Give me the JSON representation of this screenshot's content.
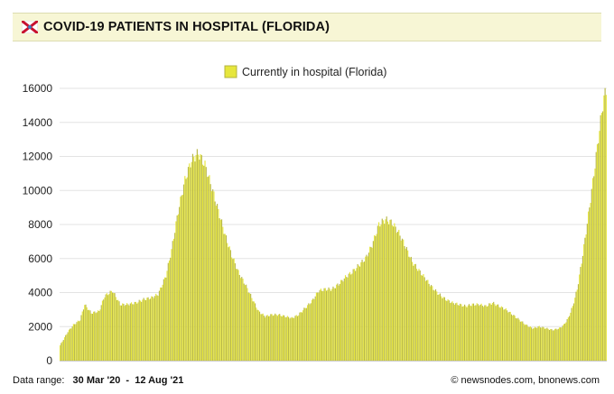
{
  "header": {
    "title": "COVID-19 PATIENTS IN HOSPITAL (FLORIDA)",
    "flag_icon": "florida-flag-icon",
    "accent_color": "#f7f6d5"
  },
  "footer": {
    "range_label": "Data range:",
    "range_value": "30 Mar '20  -  12 Aug '21",
    "credit": "© newsnodes.com, bnonews.com"
  },
  "chart_data": {
    "type": "bar",
    "title": "",
    "legend": [
      {
        "name": "Currently in hospital (Florida)",
        "color": "#e6e63c"
      }
    ],
    "legend_position": "top-center",
    "xlabel": "",
    "ylabel": "",
    "ylim": [
      0,
      16000
    ],
    "yticks": [
      "0",
      "2000",
      "4000",
      "6000",
      "8000",
      "10000",
      "12000",
      "14000",
      "16000"
    ],
    "grid": true,
    "x_start": "30 Mar '20",
    "x_end": "12 Aug '21",
    "series_color": "#e6e63c",
    "series_edge_color": "#b8b84a",
    "series_name": "Currently in hospital (Florida)",
    "keypoints_day_value": [
      [
        0,
        900
      ],
      [
        7,
        1700
      ],
      [
        12,
        2100
      ],
      [
        18,
        2400
      ],
      [
        22,
        3300
      ],
      [
        28,
        2800
      ],
      [
        35,
        2900
      ],
      [
        40,
        3800
      ],
      [
        47,
        4100
      ],
      [
        54,
        3300
      ],
      [
        60,
        3300
      ],
      [
        68,
        3400
      ],
      [
        75,
        3600
      ],
      [
        82,
        3700
      ],
      [
        88,
        3900
      ],
      [
        95,
        5000
      ],
      [
        100,
        6500
      ],
      [
        106,
        8800
      ],
      [
        112,
        10600
      ],
      [
        118,
        11800
      ],
      [
        124,
        12200
      ],
      [
        130,
        11500
      ],
      [
        136,
        10200
      ],
      [
        142,
        8800
      ],
      [
        148,
        7400
      ],
      [
        154,
        6200
      ],
      [
        160,
        5200
      ],
      [
        166,
        4500
      ],
      [
        172,
        3700
      ],
      [
        178,
        2900
      ],
      [
        184,
        2600
      ],
      [
        190,
        2700
      ],
      [
        196,
        2700
      ],
      [
        202,
        2600
      ],
      [
        208,
        2500
      ],
      [
        214,
        2700
      ],
      [
        220,
        3100
      ],
      [
        226,
        3500
      ],
      [
        232,
        4100
      ],
      [
        238,
        4200
      ],
      [
        244,
        4200
      ],
      [
        250,
        4500
      ],
      [
        256,
        4900
      ],
      [
        262,
        5200
      ],
      [
        268,
        5600
      ],
      [
        274,
        6000
      ],
      [
        280,
        6800
      ],
      [
        286,
        8000
      ],
      [
        292,
        8300
      ],
      [
        298,
        8100
      ],
      [
        304,
        7500
      ],
      [
        310,
        6700
      ],
      [
        316,
        5800
      ],
      [
        322,
        5300
      ],
      [
        328,
        4800
      ],
      [
        334,
        4300
      ],
      [
        340,
        3900
      ],
      [
        346,
        3600
      ],
      [
        352,
        3400
      ],
      [
        358,
        3300
      ],
      [
        364,
        3200
      ],
      [
        370,
        3300
      ],
      [
        376,
        3300
      ],
      [
        382,
        3200
      ],
      [
        388,
        3400
      ],
      [
        394,
        3200
      ],
      [
        400,
        3000
      ],
      [
        406,
        2700
      ],
      [
        412,
        2400
      ],
      [
        418,
        2100
      ],
      [
        424,
        1900
      ],
      [
        430,
        2000
      ],
      [
        436,
        1900
      ],
      [
        442,
        1800
      ],
      [
        448,
        1900
      ],
      [
        452,
        2100
      ],
      [
        456,
        2500
      ],
      [
        460,
        3200
      ],
      [
        464,
        4200
      ],
      [
        468,
        5800
      ],
      [
        472,
        7600
      ],
      [
        476,
        9500
      ],
      [
        480,
        11500
      ],
      [
        484,
        13600
      ],
      [
        488,
        15500
      ],
      [
        490,
        15800
      ]
    ]
  }
}
